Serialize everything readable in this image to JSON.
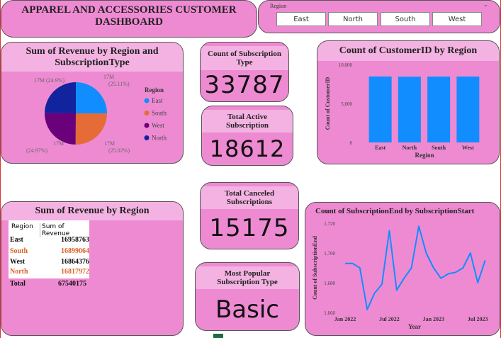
{
  "header": {
    "title": "APPAREL AND ACCESSORIES CUSTOMER DASHBOARD"
  },
  "slicer": {
    "label": "Region",
    "options": [
      "East",
      "North",
      "South",
      "West"
    ]
  },
  "kpis": [
    {
      "label": "Count of Subscription Type",
      "value": 33787
    },
    {
      "label": "Total Active Subscription",
      "value": 18612
    },
    {
      "label": "Total Canceled Subscriptions",
      "value": 15175
    },
    {
      "label": "Most Popular Subscription Type",
      "value": "Basic"
    }
  ],
  "table": {
    "title": "Sum of Revenue by Region",
    "columns": [
      "Region",
      "Sum of Revenue"
    ],
    "rows": [
      [
        "East",
        16958763
      ],
      [
        "South",
        16899064
      ],
      [
        "West",
        16864376
      ],
      [
        "North",
        16817972
      ]
    ],
    "total": [
      "Total",
      67540175
    ]
  },
  "chart_data": [
    {
      "type": "pie",
      "title": "Sum of Revenue by Region and SubscriptionType",
      "categories": [
        "East",
        "South",
        "West",
        "North"
      ],
      "values": [
        16958763,
        16899064,
        16864376,
        16817972
      ],
      "value_labels": [
        "17M",
        "17M",
        "17M",
        "17M"
      ],
      "percent_labels": [
        "(25.11%)",
        "(25.02%)",
        "(24.97%)",
        "(24.9%)"
      ],
      "colors": [
        "#118dff",
        "#e66c37",
        "#6b007b",
        "#12239e"
      ],
      "legend_title": "Region",
      "legend": "right"
    },
    {
      "type": "bar",
      "title": "Count of CustomerID by Region",
      "categories": [
        "East",
        "North",
        "South",
        "West"
      ],
      "values": [
        8460,
        8430,
        8447,
        8450
      ],
      "color": "#118dff",
      "ylim": [
        0,
        10000
      ],
      "yticks": [
        0,
        {
          "value": 5000,
          "label": "5,000"
        },
        {
          "value": 10000,
          "label": "10,000"
        }
      ],
      "xlabel": "Region",
      "ylabel": "Count of CustomerID"
    },
    {
      "type": "line",
      "title": "Count of SubscriptionEnd by SubscriptionStart",
      "x": [
        "2022-01",
        "2022-02",
        "2022-03",
        "2022-04",
        "2022-05",
        "2022-06",
        "2022-07",
        "2022-08",
        "2022-09",
        "2022-10",
        "2022-11",
        "2022-12",
        "2023-01",
        "2023-02",
        "2023-03",
        "2023-04",
        "2023-05",
        "2023-06",
        "2023-07",
        "2023-08"
      ],
      "values": [
        1693,
        1693,
        1690,
        1662,
        1673,
        1679,
        1715,
        1675,
        1683,
        1690,
        1718,
        1700,
        1690,
        1683,
        1686,
        1687,
        1690,
        1700,
        1680,
        1695
      ],
      "color": "#118dff",
      "ylim": [
        1660,
        1720
      ],
      "yticks": [
        {
          "value": 1660,
          "label": "1,660"
        },
        {
          "value": 1680,
          "label": "1,680"
        },
        {
          "value": 1700,
          "label": "1,700"
        },
        {
          "value": 1720,
          "label": "1,720"
        }
      ],
      "xticks": [
        {
          "value": "2022-01",
          "label": "Jan 2022"
        },
        {
          "value": "2022-07",
          "label": "Jul 2022"
        },
        {
          "value": "2023-01",
          "label": "Jan 2023"
        },
        {
          "value": "2023-07",
          "label": "Jul 2023"
        }
      ],
      "xlabel": "Year",
      "ylabel": "Count of SubscriptionEnd"
    }
  ]
}
